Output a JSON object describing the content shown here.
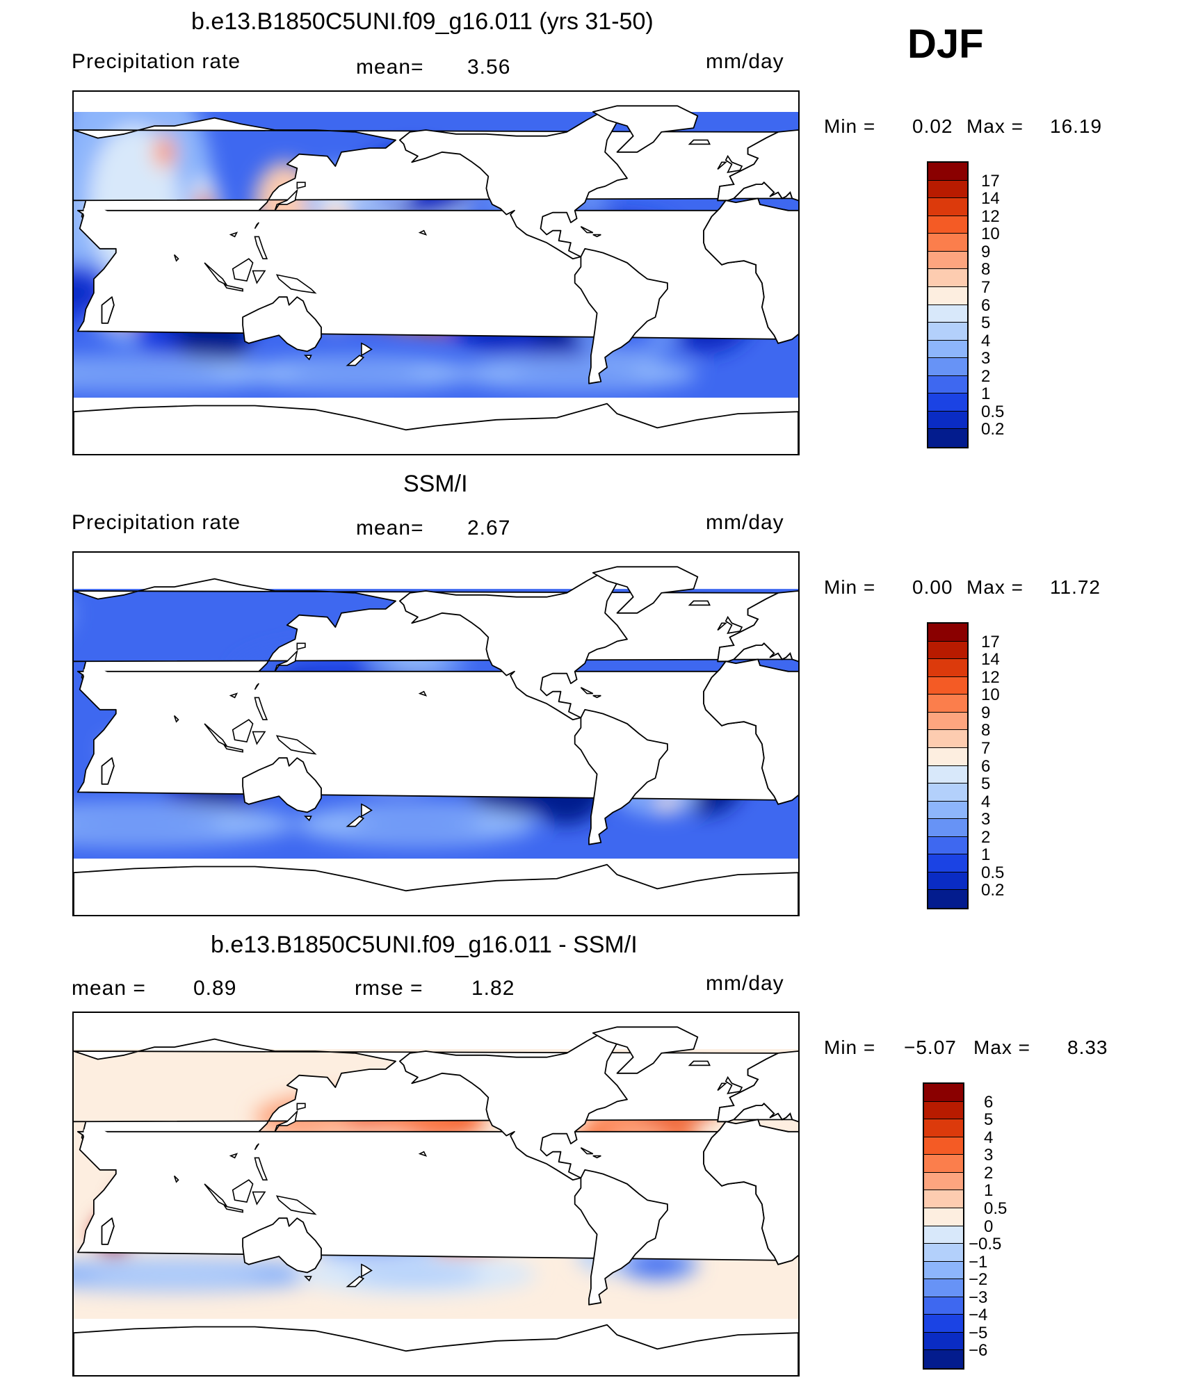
{
  "season": "DJF",
  "panels": [
    {
      "id": "model",
      "title": "b.e13.B1850C5UNI.f09_g16.011 (yrs 31-50)",
      "left_label": "Precipitation  rate",
      "mid_label": "mean=",
      "mid_value": "3.56",
      "units": "mm/day",
      "min_label": "Min  =",
      "min_value": "0.02",
      "max_label": "Max  =",
      "max_value": "16.19",
      "levels": [
        "17",
        "14",
        "12",
        "10",
        "9",
        "8",
        "7",
        "6",
        "5",
        "4",
        "3",
        "2",
        "1",
        "0.5",
        "0.2"
      ],
      "colors": [
        "#8a0000",
        "#b81b00",
        "#dc3a0c",
        "#f45b25",
        "#fb7e4c",
        "#fda57f",
        "#fdccb0",
        "#fdeee0",
        "#d8e8fa",
        "#b3d0fb",
        "#8db5fb",
        "#6793f6",
        "#3e68f0",
        "#1b43e4",
        "#0a2cc4",
        "#031c8e"
      ]
    },
    {
      "id": "obs",
      "title": "SSM/I",
      "left_label": "Precipitation  rate",
      "mid_label": "mean=",
      "mid_value": "2.67",
      "units": "mm/day",
      "min_label": "Min  =",
      "min_value": "0.00",
      "max_label": "Max  =",
      "max_value": "11.72",
      "levels": [
        "17",
        "14",
        "12",
        "10",
        "9",
        "8",
        "7",
        "6",
        "5",
        "4",
        "3",
        "2",
        "1",
        "0.5",
        "0.2"
      ],
      "colors": [
        "#8a0000",
        "#b81b00",
        "#dc3a0c",
        "#f45b25",
        "#fb7e4c",
        "#fda57f",
        "#fdccb0",
        "#fdeee0",
        "#d8e8fa",
        "#b3d0fb",
        "#8db5fb",
        "#6793f6",
        "#3e68f0",
        "#1b43e4",
        "#0a2cc4",
        "#031c8e"
      ]
    },
    {
      "id": "diff",
      "title": "b.e13.B1850C5UNI.f09_g16.011 - SSM/I",
      "left_label": "mean  =",
      "left_value": "0.89",
      "mid_label": "rmse  =",
      "mid_value": "1.82",
      "units": "mm/day",
      "min_label": "Min  =",
      "min_value": "−5.07",
      "max_label": "Max  =",
      "max_value": "8.33",
      "levels": [
        "6",
        "5",
        "4",
        "3",
        "2",
        "1",
        "0.5",
        "0",
        "−0.5",
        "−1",
        "−2",
        "−3",
        "−4",
        "−5",
        "−6"
      ],
      "colors": [
        "#8a0000",
        "#b81b00",
        "#dc3a0c",
        "#f45b25",
        "#fb7e4c",
        "#fda57f",
        "#fdccb0",
        "#fdeee0",
        "#d8e8fa",
        "#b3d0fb",
        "#8db5fb",
        "#6793f6",
        "#3e68f0",
        "#1b43e4",
        "#0a2cc4",
        "#031c8e"
      ]
    }
  ],
  "chart_data": [
    {
      "type": "heatmap",
      "title": "b.e13.B1850C5UNI.f09_g16.011 (yrs 31-50)",
      "variable": "Precipitation  rate",
      "units": "mm/day",
      "mean": 3.56,
      "min": 0.02,
      "max": 16.19,
      "contour_levels": [
        0.2,
        0.5,
        1,
        2,
        3,
        4,
        5,
        6,
        7,
        8,
        9,
        10,
        12,
        14,
        17
      ]
    },
    {
      "type": "heatmap",
      "title": "SSM/I",
      "variable": "Precipitation  rate",
      "units": "mm/day",
      "mean": 2.67,
      "min": 0.0,
      "max": 11.72,
      "contour_levels": [
        0.2,
        0.5,
        1,
        2,
        3,
        4,
        5,
        6,
        7,
        8,
        9,
        10,
        12,
        14,
        17
      ]
    },
    {
      "type": "heatmap",
      "title": "b.e13.B1850C5UNI.f09_g16.011 - SSM/I",
      "units": "mm/day",
      "mean": 0.89,
      "rmse": 1.82,
      "min": -5.07,
      "max": 8.33,
      "contour_levels": [
        -6,
        -5,
        -4,
        -3,
        -2,
        -1,
        -0.5,
        0,
        0.5,
        1,
        2,
        3,
        4,
        5,
        6
      ]
    }
  ]
}
